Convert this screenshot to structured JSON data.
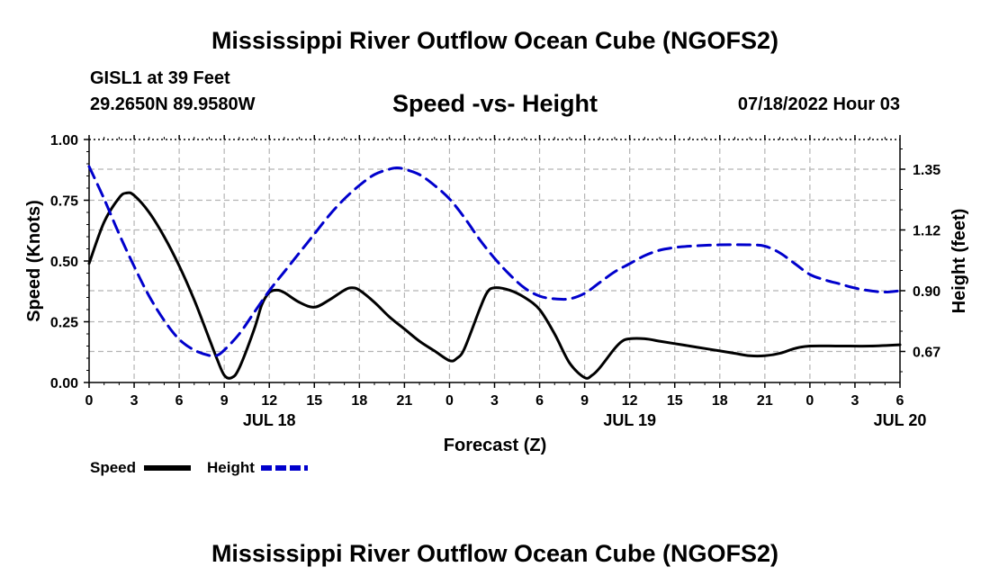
{
  "header": {
    "title": "Mississippi River Outflow Ocean Cube (NGOFS2)",
    "station": "GISL1 at 39 Feet",
    "coords": "29.2650N  89.9580W",
    "subtitle": "Speed -vs- Height",
    "datetime": "07/18/2022 Hour 03",
    "footer_title": "Mississippi River Outflow Ocean Cube (NGOFS2)"
  },
  "colors": {
    "speed": "#000000",
    "height": "#0000cc",
    "grid": "#b4b4b4"
  },
  "chart_data": {
    "type": "line",
    "xlabel": "Forecast (Z)",
    "ylabel_left": "Speed (Knots)",
    "ylabel_right": "Height (feet)",
    "x_range_hours": [
      0,
      54
    ],
    "x_ticks": [
      {
        "h": 0,
        "label": "0"
      },
      {
        "h": 3,
        "label": "3"
      },
      {
        "h": 6,
        "label": "6"
      },
      {
        "h": 9,
        "label": "9"
      },
      {
        "h": 12,
        "label": "12"
      },
      {
        "h": 15,
        "label": "15"
      },
      {
        "h": 18,
        "label": "18"
      },
      {
        "h": 21,
        "label": "21"
      },
      {
        "h": 24,
        "label": "0"
      },
      {
        "h": 27,
        "label": "3"
      },
      {
        "h": 30,
        "label": "6"
      },
      {
        "h": 33,
        "label": "9"
      },
      {
        "h": 36,
        "label": "12"
      },
      {
        "h": 39,
        "label": "15"
      },
      {
        "h": 42,
        "label": "18"
      },
      {
        "h": 45,
        "label": "21"
      },
      {
        "h": 48,
        "label": "0"
      },
      {
        "h": 51,
        "label": "3"
      },
      {
        "h": 54,
        "label": "6"
      }
    ],
    "date_labels": [
      {
        "h": 12,
        "label": "JUL 18"
      },
      {
        "h": 36,
        "label": "JUL 19"
      },
      {
        "h": 54,
        "label": "JUL 20"
      }
    ],
    "y_left": {
      "range": [
        0,
        1
      ],
      "ticks": [
        "0.00",
        "0.25",
        "0.50",
        "0.75",
        "1.00"
      ]
    },
    "y_right": {
      "range": [
        0.56,
        1.46
      ],
      "ticks": [
        {
          "v": 0.675,
          "label": "0.67"
        },
        {
          "v": 0.9,
          "label": "0.90"
        },
        {
          "v": 1.125,
          "label": "1.12"
        },
        {
          "v": 1.35,
          "label": "1.35"
        }
      ]
    },
    "series": [
      {
        "name": "Speed",
        "axis": "left",
        "points": [
          [
            0,
            0.49
          ],
          [
            1,
            0.66
          ],
          [
            2,
            0.76
          ],
          [
            2.5,
            0.78
          ],
          [
            3,
            0.77
          ],
          [
            4,
            0.7
          ],
          [
            5,
            0.6
          ],
          [
            6,
            0.48
          ],
          [
            7,
            0.34
          ],
          [
            8,
            0.18
          ],
          [
            8.5,
            0.1
          ],
          [
            9,
            0.03
          ],
          [
            9.5,
            0.02
          ],
          [
            10,
            0.06
          ],
          [
            11,
            0.22
          ],
          [
            11.5,
            0.32
          ],
          [
            12,
            0.37
          ],
          [
            12.5,
            0.38
          ],
          [
            13,
            0.37
          ],
          [
            14,
            0.33
          ],
          [
            15,
            0.31
          ],
          [
            16,
            0.34
          ],
          [
            17,
            0.38
          ],
          [
            17.5,
            0.39
          ],
          [
            18,
            0.38
          ],
          [
            19,
            0.33
          ],
          [
            20,
            0.27
          ],
          [
            21,
            0.22
          ],
          [
            22,
            0.17
          ],
          [
            23,
            0.13
          ],
          [
            24,
            0.09
          ],
          [
            24.5,
            0.1
          ],
          [
            25,
            0.14
          ],
          [
            26,
            0.3
          ],
          [
            26.5,
            0.37
          ],
          [
            27,
            0.39
          ],
          [
            28,
            0.38
          ],
          [
            29,
            0.35
          ],
          [
            30,
            0.3
          ],
          [
            31,
            0.2
          ],
          [
            32,
            0.08
          ],
          [
            33,
            0.02
          ],
          [
            33.5,
            0.03
          ],
          [
            34,
            0.06
          ],
          [
            35,
            0.14
          ],
          [
            35.5,
            0.17
          ],
          [
            36,
            0.18
          ],
          [
            37,
            0.18
          ],
          [
            38,
            0.17
          ],
          [
            39,
            0.16
          ],
          [
            40,
            0.15
          ],
          [
            41,
            0.14
          ],
          [
            42,
            0.13
          ],
          [
            43,
            0.12
          ],
          [
            44,
            0.11
          ],
          [
            45,
            0.11
          ],
          [
            46,
            0.12
          ],
          [
            47,
            0.14
          ],
          [
            48,
            0.15
          ],
          [
            50,
            0.15
          ],
          [
            52,
            0.15
          ],
          [
            54,
            0.155
          ]
        ]
      },
      {
        "name": "Height",
        "axis": "right",
        "points": [
          [
            0,
            1.36
          ],
          [
            1,
            1.24
          ],
          [
            2,
            1.11
          ],
          [
            3,
            0.99
          ],
          [
            4,
            0.88
          ],
          [
            5,
            0.79
          ],
          [
            6,
            0.72
          ],
          [
            7,
            0.68
          ],
          [
            8,
            0.66
          ],
          [
            8.5,
            0.66
          ],
          [
            9,
            0.68
          ],
          [
            10,
            0.74
          ],
          [
            11,
            0.82
          ],
          [
            12,
            0.9
          ],
          [
            13,
            0.97
          ],
          [
            14,
            1.04
          ],
          [
            15,
            1.11
          ],
          [
            16,
            1.18
          ],
          [
            17,
            1.24
          ],
          [
            18,
            1.29
          ],
          [
            19,
            1.33
          ],
          [
            20,
            1.35
          ],
          [
            20.5,
            1.355
          ],
          [
            21,
            1.35
          ],
          [
            22,
            1.33
          ],
          [
            23,
            1.29
          ],
          [
            24,
            1.24
          ],
          [
            25,
            1.17
          ],
          [
            26,
            1.09
          ],
          [
            27,
            1.02
          ],
          [
            28,
            0.96
          ],
          [
            29,
            0.91
          ],
          [
            30,
            0.88
          ],
          [
            31,
            0.87
          ],
          [
            32,
            0.87
          ],
          [
            33,
            0.89
          ],
          [
            34,
            0.93
          ],
          [
            35,
            0.97
          ],
          [
            36,
            1.0
          ],
          [
            37,
            1.03
          ],
          [
            38,
            1.05
          ],
          [
            39,
            1.06
          ],
          [
            40,
            1.065
          ],
          [
            42,
            1.07
          ],
          [
            44,
            1.07
          ],
          [
            45,
            1.065
          ],
          [
            46,
            1.04
          ],
          [
            47,
            1.0
          ],
          [
            48,
            0.96
          ],
          [
            49,
            0.94
          ],
          [
            50,
            0.925
          ],
          [
            51,
            0.91
          ],
          [
            52,
            0.9
          ],
          [
            53,
            0.895
          ],
          [
            54,
            0.9
          ]
        ]
      }
    ],
    "legend": [
      {
        "name": "Speed",
        "label": "Speed"
      },
      {
        "name": "Height",
        "label": "Height"
      }
    ]
  }
}
